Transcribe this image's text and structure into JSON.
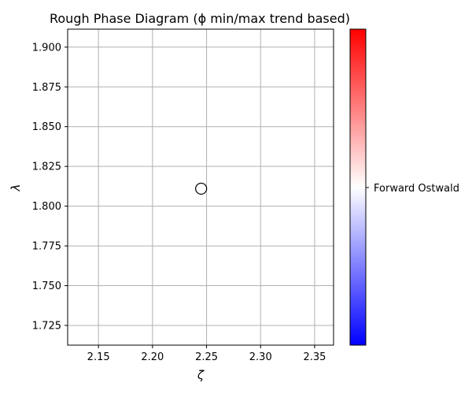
{
  "chart_data": {
    "type": "scatter",
    "title": "Rough Phase Diagram (ϕ min/max trend based)",
    "xlabel": "ζ",
    "ylabel": "λ",
    "xlim": [
      2.1215,
      2.3675
    ],
    "ylim": [
      1.7126,
      1.9113
    ],
    "xticks": [
      2.15,
      2.2,
      2.25,
      2.3,
      2.35
    ],
    "xtick_labels": [
      "2.15",
      "2.20",
      "2.25",
      "2.30",
      "2.35"
    ],
    "yticks": [
      1.725,
      1.75,
      1.775,
      1.8,
      1.825,
      1.85,
      1.875,
      1.9
    ],
    "ytick_labels": [
      "1.725",
      "1.750",
      "1.775",
      "1.800",
      "1.825",
      "1.850",
      "1.875",
      "1.900"
    ],
    "grid": true,
    "points": [
      {
        "x": 2.245,
        "y": 1.811,
        "marker": "open-circle"
      }
    ],
    "colorbar": {
      "colormap": "bwr",
      "colors": [
        "#0000ff",
        "#ffffff",
        "#ff0000"
      ],
      "tick_labels": [
        "Forward Ostwald"
      ]
    }
  }
}
